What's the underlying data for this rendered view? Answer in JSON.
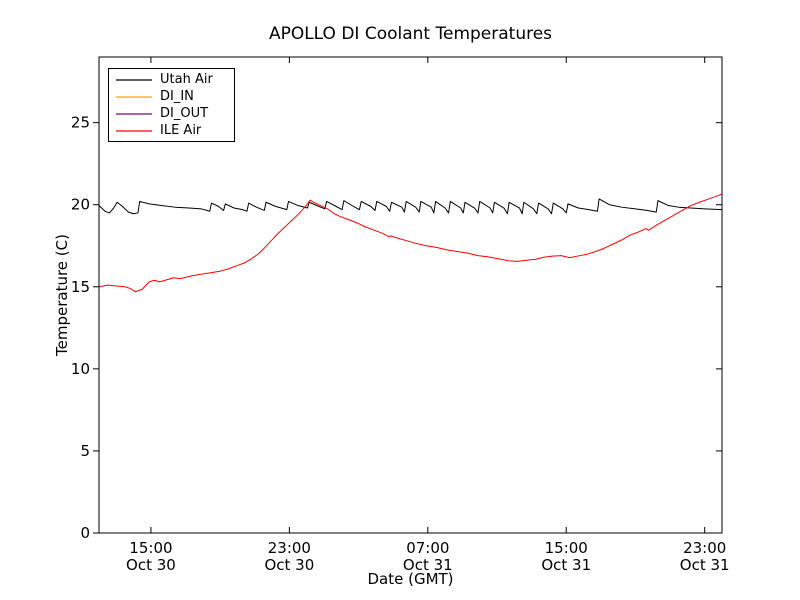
{
  "chart_data": {
    "type": "line",
    "title": "APOLLO DI Coolant Temperatures",
    "xlabel": "Date (GMT)",
    "ylabel": "Temperature (C)",
    "x_unit_note": "hours after 12:00 Oct 30 GMT",
    "xlim": [
      0,
      36
    ],
    "ylim": [
      0,
      29
    ],
    "grid": false,
    "legend_position": "upper-left",
    "y_ticks": [
      0,
      5,
      10,
      15,
      20,
      25
    ],
    "x_ticks": [
      {
        "h": 3,
        "time": "15:00",
        "date": "Oct 30"
      },
      {
        "h": 11,
        "time": "23:00",
        "date": "Oct 30"
      },
      {
        "h": 19,
        "time": "07:00",
        "date": "Oct 31"
      },
      {
        "h": 27,
        "time": "15:00",
        "date": "Oct 31"
      },
      {
        "h": 35,
        "time": "23:00",
        "date": "Oct 31"
      }
    ],
    "series": [
      {
        "name": "Utah Air",
        "color": "#000000",
        "opacity": 1,
        "points": [
          [
            0,
            19.95
          ],
          [
            0.35,
            19.6
          ],
          [
            0.6,
            19.5
          ],
          [
            0.85,
            19.8
          ],
          [
            1.05,
            20.15
          ],
          [
            1.35,
            19.9
          ],
          [
            1.7,
            19.55
          ],
          [
            2.0,
            19.45
          ],
          [
            2.25,
            19.5
          ],
          [
            2.35,
            20.2
          ],
          [
            2.9,
            20.05
          ],
          [
            3.6,
            19.95
          ],
          [
            4.4,
            19.85
          ],
          [
            5.2,
            19.8
          ],
          [
            5.9,
            19.75
          ],
          [
            6.4,
            19.6
          ],
          [
            6.5,
            20.1
          ],
          [
            6.9,
            19.9
          ],
          [
            7.2,
            19.65
          ],
          [
            7.3,
            20.05
          ],
          [
            7.8,
            19.8
          ],
          [
            8.3,
            19.7
          ],
          [
            8.55,
            19.6
          ],
          [
            8.65,
            20.1
          ],
          [
            9.1,
            19.85
          ],
          [
            9.55,
            19.65
          ],
          [
            9.65,
            20.15
          ],
          [
            10.2,
            19.9
          ],
          [
            10.85,
            19.7
          ],
          [
            10.95,
            20.2
          ],
          [
            11.5,
            19.95
          ],
          [
            12.05,
            19.8
          ],
          [
            12.15,
            20.15
          ],
          [
            12.7,
            19.9
          ],
          [
            13.05,
            19.75
          ],
          [
            13.15,
            20.2
          ],
          [
            13.7,
            19.9
          ],
          [
            14.05,
            19.7
          ],
          [
            14.15,
            20.25
          ],
          [
            14.7,
            19.9
          ],
          [
            15.05,
            19.7
          ],
          [
            15.15,
            20.2
          ],
          [
            15.7,
            19.9
          ],
          [
            15.95,
            19.65
          ],
          [
            16.05,
            20.2
          ],
          [
            16.6,
            19.9
          ],
          [
            16.8,
            19.6
          ],
          [
            16.9,
            20.15
          ],
          [
            17.5,
            19.85
          ],
          [
            17.65,
            19.55
          ],
          [
            17.75,
            20.2
          ],
          [
            18.3,
            19.85
          ],
          [
            18.5,
            19.55
          ],
          [
            18.6,
            20.2
          ],
          [
            19.2,
            19.85
          ],
          [
            19.35,
            19.5
          ],
          [
            19.45,
            20.2
          ],
          [
            20.0,
            19.8
          ],
          [
            20.2,
            19.5
          ],
          [
            20.3,
            20.2
          ],
          [
            20.9,
            19.8
          ],
          [
            21.05,
            19.5
          ],
          [
            21.15,
            20.15
          ],
          [
            21.7,
            19.8
          ],
          [
            21.9,
            19.5
          ],
          [
            22.0,
            20.2
          ],
          [
            22.6,
            19.8
          ],
          [
            22.75,
            19.5
          ],
          [
            22.85,
            20.15
          ],
          [
            23.4,
            19.8
          ],
          [
            23.6,
            19.45
          ],
          [
            23.7,
            20.15
          ],
          [
            24.3,
            19.8
          ],
          [
            24.45,
            19.45
          ],
          [
            24.55,
            20.15
          ],
          [
            25.1,
            19.75
          ],
          [
            25.3,
            19.45
          ],
          [
            25.4,
            20.1
          ],
          [
            25.95,
            19.75
          ],
          [
            26.15,
            19.45
          ],
          [
            26.25,
            20.1
          ],
          [
            26.8,
            19.75
          ],
          [
            27.0,
            19.5
          ],
          [
            27.1,
            20.05
          ],
          [
            27.7,
            19.8
          ],
          [
            28.3,
            19.7
          ],
          [
            28.8,
            19.6
          ],
          [
            28.9,
            20.35
          ],
          [
            29.5,
            20.0
          ],
          [
            30.2,
            19.85
          ],
          [
            31.0,
            19.75
          ],
          [
            31.7,
            19.65
          ],
          [
            32.2,
            19.55
          ],
          [
            32.3,
            20.25
          ],
          [
            32.9,
            19.95
          ],
          [
            33.5,
            19.85
          ],
          [
            34.2,
            19.8
          ],
          [
            35.0,
            19.75
          ],
          [
            36.0,
            19.7
          ]
        ]
      },
      {
        "name": "DI_IN",
        "color": "#ffa500",
        "opacity": 0.9,
        "points": [
          [
            0,
            0
          ],
          [
            36,
            0
          ]
        ]
      },
      {
        "name": "DI_OUT",
        "color": "#800080",
        "opacity": 0.65,
        "points": [
          [
            0,
            0
          ],
          [
            36,
            0
          ]
        ]
      },
      {
        "name": "ILE Air",
        "color": "#ff0000",
        "opacity": 1,
        "points": [
          [
            0,
            15.0
          ],
          [
            0.5,
            15.1
          ],
          [
            1.0,
            15.05
          ],
          [
            1.5,
            15.0
          ],
          [
            1.8,
            14.9
          ],
          [
            2.1,
            14.7
          ],
          [
            2.5,
            14.85
          ],
          [
            2.9,
            15.3
          ],
          [
            3.2,
            15.4
          ],
          [
            3.5,
            15.3
          ],
          [
            4.0,
            15.45
          ],
          [
            4.3,
            15.55
          ],
          [
            4.7,
            15.5
          ],
          [
            5.3,
            15.65
          ],
          [
            5.8,
            15.75
          ],
          [
            6.4,
            15.85
          ],
          [
            7.0,
            15.95
          ],
          [
            7.5,
            16.1
          ],
          [
            8.0,
            16.3
          ],
          [
            8.4,
            16.45
          ],
          [
            8.8,
            16.7
          ],
          [
            9.2,
            17.0
          ],
          [
            9.5,
            17.3
          ],
          [
            9.9,
            17.75
          ],
          [
            10.3,
            18.2
          ],
          [
            10.7,
            18.6
          ],
          [
            11.1,
            19.0
          ],
          [
            11.5,
            19.4
          ],
          [
            11.9,
            19.85
          ],
          [
            12.2,
            20.28
          ],
          [
            12.5,
            20.1
          ],
          [
            12.8,
            19.95
          ],
          [
            13.2,
            19.75
          ],
          [
            13.6,
            19.45
          ],
          [
            13.9,
            19.3
          ],
          [
            14.4,
            19.1
          ],
          [
            14.9,
            18.9
          ],
          [
            15.4,
            18.65
          ],
          [
            15.9,
            18.45
          ],
          [
            16.4,
            18.25
          ],
          [
            16.75,
            18.05
          ],
          [
            16.85,
            18.1
          ],
          [
            17.3,
            17.95
          ],
          [
            17.8,
            17.8
          ],
          [
            18.3,
            17.65
          ],
          [
            18.9,
            17.5
          ],
          [
            19.5,
            17.4
          ],
          [
            20.1,
            17.25
          ],
          [
            20.7,
            17.15
          ],
          [
            21.3,
            17.05
          ],
          [
            21.9,
            16.9
          ],
          [
            22.5,
            16.82
          ],
          [
            23.1,
            16.7
          ],
          [
            23.7,
            16.58
          ],
          [
            24.2,
            16.55
          ],
          [
            24.7,
            16.62
          ],
          [
            25.2,
            16.67
          ],
          [
            25.7,
            16.8
          ],
          [
            26.2,
            16.87
          ],
          [
            26.7,
            16.9
          ],
          [
            27.2,
            16.78
          ],
          [
            27.7,
            16.88
          ],
          [
            28.2,
            16.98
          ],
          [
            28.7,
            17.15
          ],
          [
            29.2,
            17.35
          ],
          [
            29.7,
            17.6
          ],
          [
            30.2,
            17.85
          ],
          [
            30.7,
            18.15
          ],
          [
            31.2,
            18.35
          ],
          [
            31.6,
            18.55
          ],
          [
            31.75,
            18.45
          ],
          [
            32.2,
            18.75
          ],
          [
            32.7,
            19.05
          ],
          [
            33.2,
            19.35
          ],
          [
            33.7,
            19.65
          ],
          [
            34.2,
            19.95
          ],
          [
            34.7,
            20.15
          ],
          [
            35.1,
            20.3
          ],
          [
            35.5,
            20.45
          ],
          [
            36.0,
            20.65
          ]
        ]
      }
    ]
  }
}
